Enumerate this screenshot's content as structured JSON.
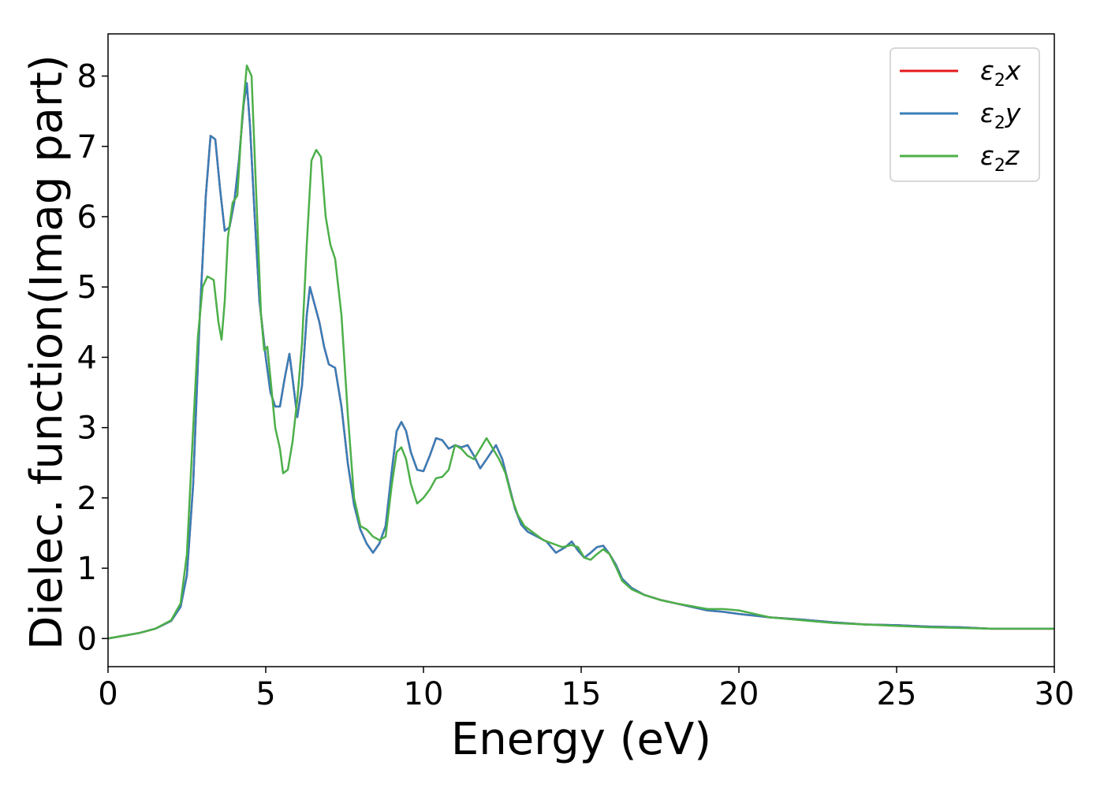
{
  "chart_data": {
    "type": "line",
    "xlabel": "Energy (eV)",
    "ylabel": "Dielec. function(Imag part)",
    "xlim": [
      0,
      30
    ],
    "ylim": [
      -0.4,
      8.6
    ],
    "xticks": [
      0,
      5,
      10,
      15,
      20,
      25,
      30
    ],
    "yticks": [
      0,
      1,
      2,
      3,
      4,
      5,
      6,
      7,
      8
    ],
    "grid": false,
    "legend_position": "top-right",
    "series": [
      {
        "name": "ε2x",
        "name_base": "ε",
        "name_sub": "2",
        "name_var": "x",
        "color": "#e41a1c",
        "x": [
          0,
          0.5,
          1,
          1.5,
          2,
          2.3,
          2.5,
          2.7,
          2.9,
          3.1,
          3.25,
          3.4,
          3.55,
          3.7,
          3.85,
          4,
          4.15,
          4.3,
          4.4,
          4.5,
          4.65,
          4.8,
          5,
          5.15,
          5.3,
          5.45,
          5.6,
          5.75,
          5.85,
          6,
          6.15,
          6.3,
          6.4,
          6.55,
          6.7,
          6.85,
          7,
          7.2,
          7.4,
          7.6,
          7.8,
          8,
          8.2,
          8.4,
          8.6,
          8.8,
          9,
          9.15,
          9.3,
          9.45,
          9.6,
          9.8,
          10,
          10.2,
          10.4,
          10.6,
          10.8,
          11,
          11.2,
          11.4,
          11.6,
          11.8,
          12,
          12.3,
          12.5,
          12.7,
          12.9,
          13.1,
          13.3,
          13.6,
          13.9,
          14.2,
          14.5,
          14.7,
          14.9,
          15.1,
          15.3,
          15.5,
          15.7,
          15.9,
          16.1,
          16.3,
          16.6,
          17,
          17.5,
          18,
          18.5,
          19,
          19.5,
          20,
          21,
          22,
          23,
          24,
          25,
          26,
          27,
          28,
          29,
          30
        ],
        "y": [
          0,
          0.04,
          0.08,
          0.14,
          0.25,
          0.45,
          0.9,
          2.2,
          4.5,
          6.3,
          7.15,
          7.1,
          6.4,
          5.8,
          5.85,
          6.2,
          6.8,
          7.6,
          7.9,
          7.3,
          6.0,
          4.8,
          4.0,
          3.5,
          3.3,
          3.3,
          3.7,
          4.05,
          3.7,
          3.15,
          3.6,
          4.6,
          5.0,
          4.75,
          4.5,
          4.15,
          3.9,
          3.85,
          3.3,
          2.5,
          1.9,
          1.55,
          1.35,
          1.22,
          1.35,
          1.6,
          2.4,
          2.95,
          3.08,
          2.95,
          2.65,
          2.4,
          2.38,
          2.6,
          2.85,
          2.82,
          2.7,
          2.75,
          2.72,
          2.75,
          2.6,
          2.42,
          2.55,
          2.75,
          2.55,
          2.2,
          1.85,
          1.62,
          1.52,
          1.45,
          1.38,
          1.22,
          1.3,
          1.38,
          1.25,
          1.15,
          1.22,
          1.3,
          1.32,
          1.2,
          1.05,
          0.85,
          0.72,
          0.62,
          0.55,
          0.5,
          0.45,
          0.4,
          0.38,
          0.35,
          0.3,
          0.27,
          0.23,
          0.2,
          0.19,
          0.17,
          0.16,
          0.14,
          0.14,
          0.14
        ]
      },
      {
        "name": "ε2y",
        "name_base": "ε",
        "name_sub": "2",
        "name_var": "y",
        "color": "#377eb8",
        "x": [
          0,
          0.5,
          1,
          1.5,
          2,
          2.3,
          2.5,
          2.7,
          2.9,
          3.1,
          3.25,
          3.4,
          3.55,
          3.7,
          3.85,
          4,
          4.15,
          4.3,
          4.4,
          4.5,
          4.65,
          4.8,
          5,
          5.15,
          5.3,
          5.45,
          5.6,
          5.75,
          5.85,
          6,
          6.15,
          6.3,
          6.4,
          6.55,
          6.7,
          6.85,
          7,
          7.2,
          7.4,
          7.6,
          7.8,
          8,
          8.2,
          8.4,
          8.6,
          8.8,
          9,
          9.15,
          9.3,
          9.45,
          9.6,
          9.8,
          10,
          10.2,
          10.4,
          10.6,
          10.8,
          11,
          11.2,
          11.4,
          11.6,
          11.8,
          12,
          12.3,
          12.5,
          12.7,
          12.9,
          13.1,
          13.3,
          13.6,
          13.9,
          14.2,
          14.5,
          14.7,
          14.9,
          15.1,
          15.3,
          15.5,
          15.7,
          15.9,
          16.1,
          16.3,
          16.6,
          17,
          17.5,
          18,
          18.5,
          19,
          19.5,
          20,
          21,
          22,
          23,
          24,
          25,
          26,
          27,
          28,
          29,
          30
        ],
        "y": [
          0,
          0.04,
          0.08,
          0.14,
          0.25,
          0.45,
          0.9,
          2.2,
          4.5,
          6.3,
          7.15,
          7.1,
          6.4,
          5.8,
          5.85,
          6.2,
          6.8,
          7.6,
          7.9,
          7.3,
          6.0,
          4.8,
          4.0,
          3.5,
          3.3,
          3.3,
          3.7,
          4.05,
          3.7,
          3.15,
          3.6,
          4.6,
          5.0,
          4.75,
          4.5,
          4.15,
          3.9,
          3.85,
          3.3,
          2.5,
          1.9,
          1.55,
          1.35,
          1.22,
          1.35,
          1.6,
          2.4,
          2.95,
          3.08,
          2.95,
          2.65,
          2.4,
          2.38,
          2.6,
          2.85,
          2.82,
          2.7,
          2.75,
          2.72,
          2.75,
          2.6,
          2.42,
          2.55,
          2.75,
          2.55,
          2.2,
          1.85,
          1.62,
          1.52,
          1.45,
          1.38,
          1.22,
          1.3,
          1.38,
          1.25,
          1.15,
          1.22,
          1.3,
          1.32,
          1.2,
          1.05,
          0.85,
          0.72,
          0.62,
          0.55,
          0.5,
          0.45,
          0.4,
          0.38,
          0.35,
          0.3,
          0.27,
          0.23,
          0.2,
          0.19,
          0.17,
          0.16,
          0.14,
          0.14,
          0.14
        ]
      },
      {
        "name": "ε2z",
        "name_base": "ε",
        "name_sub": "2",
        "name_var": "z",
        "color": "#4daf4a",
        "x": [
          0,
          0.5,
          1,
          1.5,
          2,
          2.3,
          2.5,
          2.7,
          2.85,
          3,
          3.15,
          3.35,
          3.5,
          3.6,
          3.7,
          3.8,
          3.95,
          4.1,
          4.25,
          4.4,
          4.55,
          4.7,
          4.85,
          4.95,
          5.05,
          5.15,
          5.3,
          5.45,
          5.55,
          5.7,
          5.85,
          6,
          6.15,
          6.3,
          6.45,
          6.6,
          6.75,
          6.9,
          7.05,
          7.2,
          7.4,
          7.6,
          7.8,
          8,
          8.2,
          8.4,
          8.6,
          8.8,
          9,
          9.15,
          9.3,
          9.45,
          9.6,
          9.8,
          10,
          10.2,
          10.4,
          10.6,
          10.8,
          11,
          11.2,
          11.4,
          11.6,
          11.8,
          12,
          12.2,
          12.4,
          12.6,
          12.8,
          13,
          13.2,
          13.5,
          13.8,
          14.1,
          14.4,
          14.7,
          14.9,
          15.1,
          15.3,
          15.5,
          15.7,
          15.9,
          16.1,
          16.3,
          16.6,
          17,
          17.5,
          18,
          18.5,
          19,
          19.5,
          20,
          21,
          22,
          23,
          24,
          25,
          26,
          27,
          28,
          29,
          30
        ],
        "y": [
          0,
          0.04,
          0.08,
          0.14,
          0.26,
          0.5,
          1.2,
          3.0,
          4.3,
          5.0,
          5.15,
          5.1,
          4.5,
          4.25,
          4.8,
          5.7,
          6.2,
          6.3,
          7.4,
          8.15,
          8.0,
          6.3,
          4.6,
          4.1,
          4.15,
          3.7,
          3.0,
          2.7,
          2.35,
          2.4,
          2.8,
          3.4,
          4.2,
          5.6,
          6.8,
          6.95,
          6.85,
          6.0,
          5.6,
          5.4,
          4.6,
          3.2,
          2.0,
          1.6,
          1.55,
          1.45,
          1.4,
          1.45,
          2.2,
          2.65,
          2.72,
          2.55,
          2.2,
          1.92,
          2.0,
          2.12,
          2.28,
          2.3,
          2.4,
          2.75,
          2.7,
          2.6,
          2.55,
          2.7,
          2.85,
          2.7,
          2.55,
          2.35,
          2.0,
          1.75,
          1.6,
          1.5,
          1.4,
          1.35,
          1.3,
          1.33,
          1.3,
          1.15,
          1.12,
          1.2,
          1.27,
          1.2,
          1.02,
          0.82,
          0.7,
          0.62,
          0.55,
          0.5,
          0.46,
          0.42,
          0.42,
          0.4,
          0.3,
          0.26,
          0.22,
          0.2,
          0.18,
          0.16,
          0.15,
          0.14,
          0.14,
          0.14
        ]
      }
    ]
  }
}
